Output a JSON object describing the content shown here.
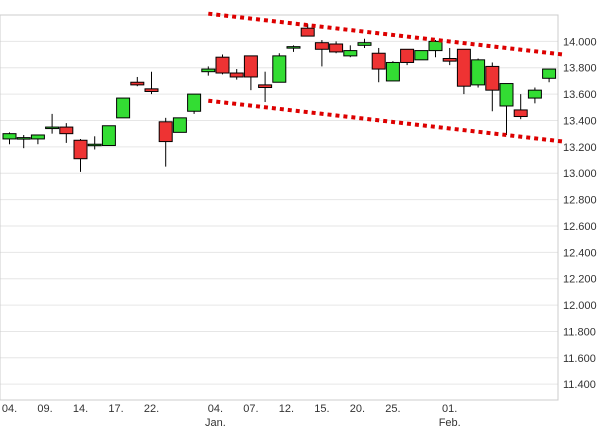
{
  "chart_data": {
    "type": "candlestick",
    "title": "",
    "xlabel": "",
    "ylabel": "",
    "ylim": [
      11.28,
      14.2
    ],
    "y_ticks": [
      "14.000",
      "13.800",
      "13.600",
      "13.400",
      "13.200",
      "13.000",
      "12.800",
      "12.600",
      "12.400",
      "12.200",
      "12.000",
      "11.800",
      "11.600",
      "11.400"
    ],
    "x_ticks": [
      {
        "label": "04.",
        "sublabel": "",
        "day": 0
      },
      {
        "label": "09.",
        "sublabel": "",
        "day": 5
      },
      {
        "label": "14.",
        "sublabel": "",
        "day": 10
      },
      {
        "label": "17.",
        "sublabel": "",
        "day": 15
      },
      {
        "label": "22.",
        "sublabel": "",
        "day": 20
      },
      {
        "label": "04.",
        "sublabel": "Jan.",
        "day": 29
      },
      {
        "label": "07.",
        "sublabel": "",
        "day": 34
      },
      {
        "label": "12.",
        "sublabel": "",
        "day": 39
      },
      {
        "label": "15.",
        "sublabel": "",
        "day": 44
      },
      {
        "label": "20.",
        "sublabel": "",
        "day": 49
      },
      {
        "label": "25.",
        "sublabel": "",
        "day": 54
      },
      {
        "label": "01.",
        "sublabel": "Feb.",
        "day": 62
      }
    ],
    "up_color": "#33dd33",
    "down_color": "#ee3333",
    "channel_color": "#dd0000",
    "grid": "horizontal",
    "candles": [
      {
        "day": 0,
        "open": 13.26,
        "high": 13.31,
        "low": 13.22,
        "close": 13.3
      },
      {
        "day": 2,
        "open": 13.26,
        "high": 13.29,
        "low": 13.19,
        "close": 13.27
      },
      {
        "day": 4,
        "open": 13.26,
        "high": 13.29,
        "low": 13.22,
        "close": 13.29
      },
      {
        "day": 6,
        "open": 13.34,
        "high": 13.45,
        "low": 13.3,
        "close": 13.35
      },
      {
        "day": 8,
        "open": 13.35,
        "high": 13.38,
        "low": 13.23,
        "close": 13.3
      },
      {
        "day": 10,
        "open": 13.25,
        "high": 13.26,
        "low": 13.01,
        "close": 13.11
      },
      {
        "day": 12,
        "open": 13.21,
        "high": 13.28,
        "low": 13.18,
        "close": 13.22
      },
      {
        "day": 14,
        "open": 13.21,
        "high": 13.36,
        "low": 13.21,
        "close": 13.36
      },
      {
        "day": 16,
        "open": 13.42,
        "high": 13.57,
        "low": 13.42,
        "close": 13.57
      },
      {
        "day": 18,
        "open": 13.69,
        "high": 13.73,
        "low": 13.66,
        "close": 13.67
      },
      {
        "day": 20,
        "open": 13.64,
        "high": 13.77,
        "low": 13.6,
        "close": 13.62
      },
      {
        "day": 22,
        "open": 13.39,
        "high": 13.42,
        "low": 13.05,
        "close": 13.24
      },
      {
        "day": 24,
        "open": 13.31,
        "high": 13.42,
        "low": 13.31,
        "close": 13.42
      },
      {
        "day": 26,
        "open": 13.47,
        "high": 13.6,
        "low": 13.45,
        "close": 13.6
      },
      {
        "day": 28,
        "open": 13.77,
        "high": 13.81,
        "low": 13.74,
        "close": 13.79
      },
      {
        "day": 30,
        "open": 13.88,
        "high": 13.9,
        "low": 13.75,
        "close": 13.76
      },
      {
        "day": 32,
        "open": 13.76,
        "high": 13.79,
        "low": 13.71,
        "close": 13.73
      },
      {
        "day": 34,
        "open": 13.89,
        "high": 13.89,
        "low": 13.63,
        "close": 13.73
      },
      {
        "day": 36,
        "open": 13.67,
        "high": 13.77,
        "low": 13.54,
        "close": 13.65
      },
      {
        "day": 38,
        "open": 13.69,
        "high": 13.91,
        "low": 13.69,
        "close": 13.89
      },
      {
        "day": 40,
        "open": 13.95,
        "high": 13.97,
        "low": 13.92,
        "close": 13.96
      },
      {
        "day": 42,
        "open": 14.1,
        "high": 14.13,
        "low": 14.05,
        "close": 14.04
      },
      {
        "day": 44,
        "open": 13.99,
        "high": 14.01,
        "low": 13.81,
        "close": 13.94
      },
      {
        "day": 46,
        "open": 13.98,
        "high": 14.0,
        "low": 13.91,
        "close": 13.92
      },
      {
        "day": 48,
        "open": 13.89,
        "high": 13.97,
        "low": 13.88,
        "close": 13.93
      },
      {
        "day": 50,
        "open": 13.97,
        "high": 14.02,
        "low": 13.95,
        "close": 13.99
      },
      {
        "day": 52,
        "open": 13.91,
        "high": 13.95,
        "low": 13.69,
        "close": 13.79
      },
      {
        "day": 54,
        "open": 13.7,
        "high": 13.85,
        "low": 13.7,
        "close": 13.84
      },
      {
        "day": 56,
        "open": 13.94,
        "high": 13.94,
        "low": 13.82,
        "close": 13.84
      },
      {
        "day": 58,
        "open": 13.86,
        "high": 13.93,
        "low": 13.86,
        "close": 13.93
      },
      {
        "day": 60,
        "open": 13.93,
        "high": 14.01,
        "low": 13.88,
        "close": 14.0
      },
      {
        "day": 62,
        "open": 13.87,
        "high": 13.95,
        "low": 13.82,
        "close": 13.85
      },
      {
        "day": 64,
        "open": 13.94,
        "high": 13.94,
        "low": 13.6,
        "close": 13.66
      },
      {
        "day": 66,
        "open": 13.67,
        "high": 13.87,
        "low": 13.65,
        "close": 13.86
      },
      {
        "day": 68,
        "open": 13.81,
        "high": 13.84,
        "low": 13.47,
        "close": 13.63
      },
      {
        "day": 70,
        "open": 13.51,
        "high": 13.68,
        "low": 13.29,
        "close": 13.68
      },
      {
        "day": 72,
        "open": 13.48,
        "high": 13.6,
        "low": 13.41,
        "close": 13.43
      },
      {
        "day": 74,
        "open": 13.57,
        "high": 13.65,
        "low": 13.53,
        "close": 13.63
      },
      {
        "day": 76,
        "open": 13.72,
        "high": 13.79,
        "low": 13.69,
        "close": 13.79
      }
    ],
    "channel_lines": [
      {
        "name": "",
        "from": {
          "day": 28,
          "value": 14.21
        },
        "to": {
          "day": 78,
          "value": 13.9
        }
      },
      {
        "name": "",
        "from": {
          "day": 28,
          "value": 13.55
        },
        "to": {
          "day": 78,
          "value": 13.24
        }
      }
    ]
  }
}
